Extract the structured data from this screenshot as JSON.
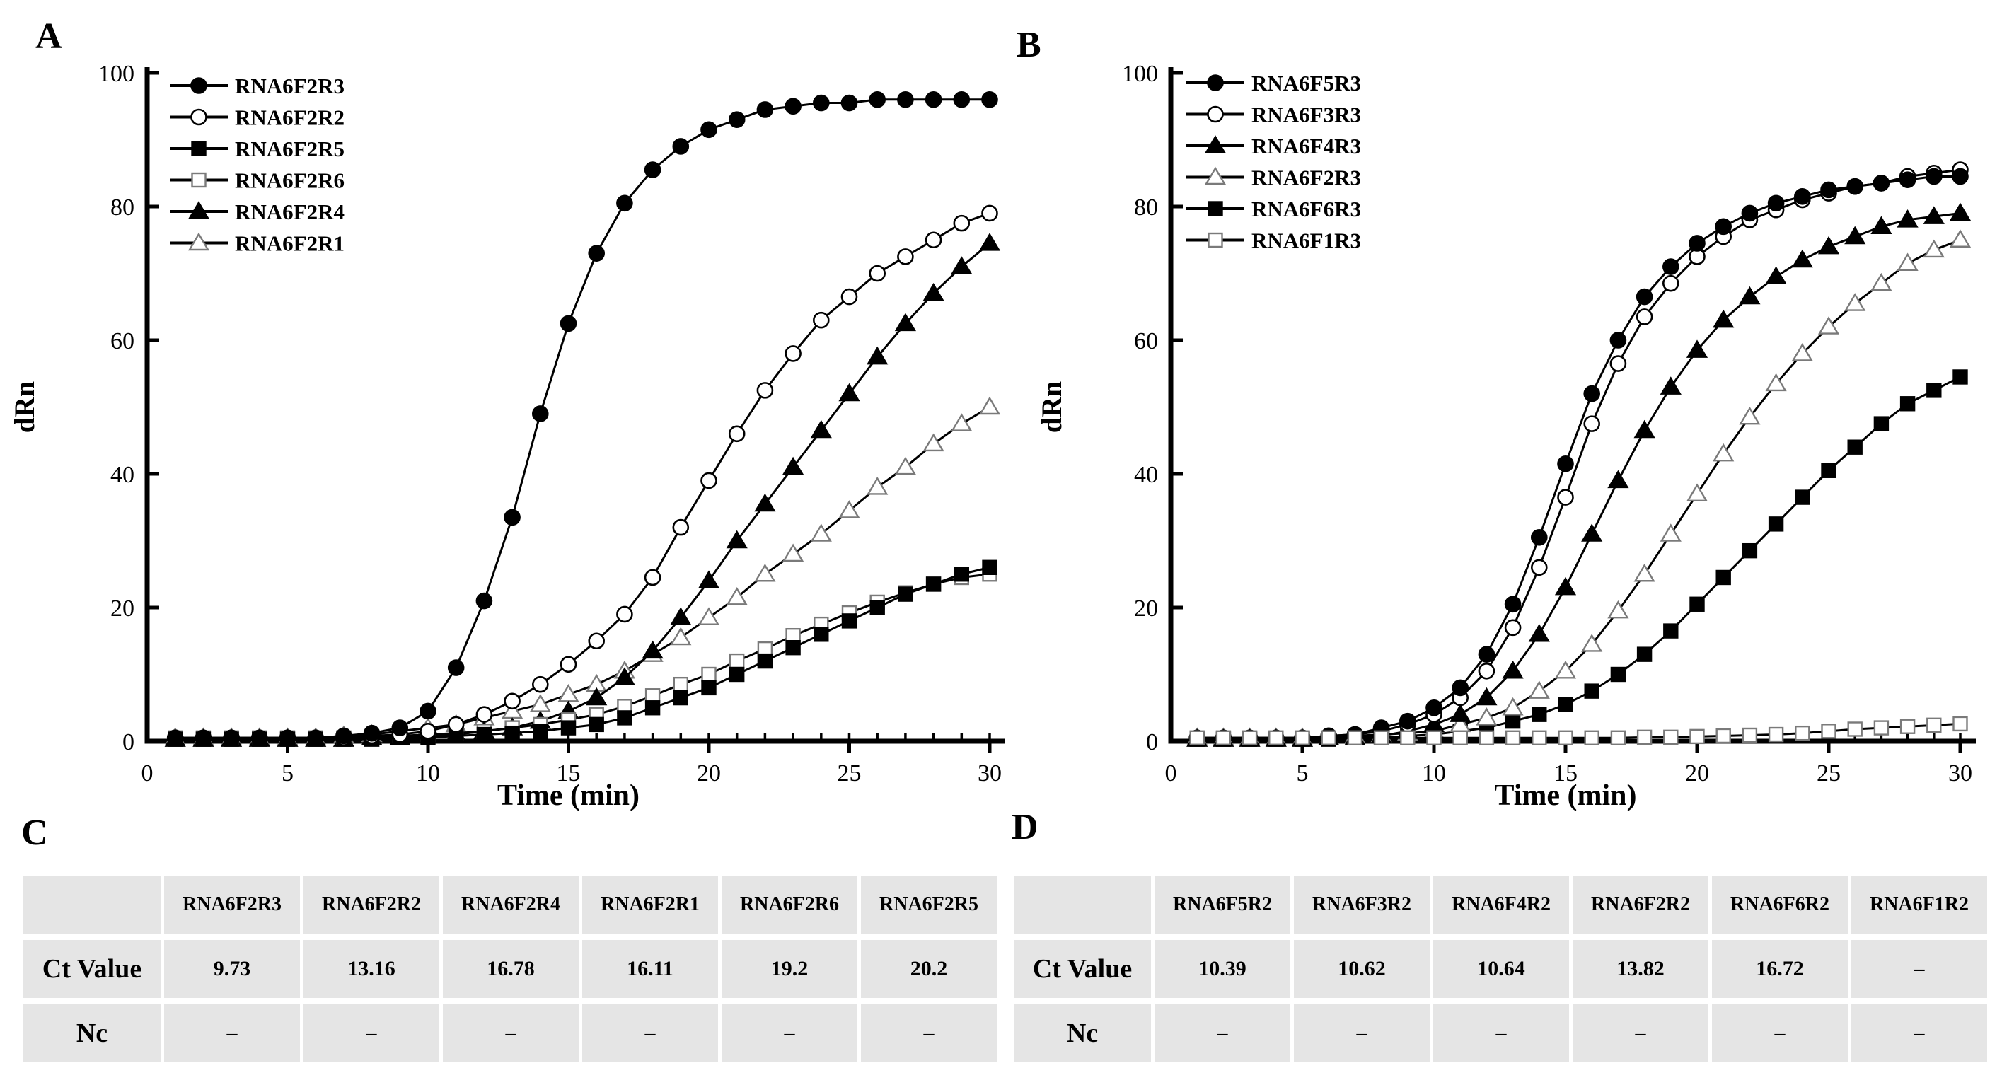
{
  "figure": {
    "background": "#ffffff",
    "ink": "#000000",
    "table_cell_bg": "#e5e5e5",
    "panel_letters": {
      "a": "A",
      "b": "B",
      "c": "C",
      "d": "D"
    }
  },
  "chart_data": [
    {
      "type": "line",
      "panel": "A",
      "title": "",
      "xlabel": "Time (min)",
      "ylabel": "dRn",
      "xlim": [
        0,
        30
      ],
      "ylim": [
        0,
        100
      ],
      "x_major_ticks": [
        0,
        5,
        10,
        15,
        20,
        25,
        30
      ],
      "x_minor_step": 1,
      "y_ticks": [
        0,
        20,
        40,
        60,
        80,
        100
      ],
      "grid": false,
      "legend_position": "top-left-inside",
      "x": [
        1,
        2,
        3,
        4,
        5,
        6,
        7,
        8,
        9,
        10,
        11,
        12,
        13,
        14,
        15,
        16,
        17,
        18,
        19,
        20,
        21,
        22,
        23,
        24,
        25,
        26,
        27,
        28,
        29,
        30
      ],
      "series": [
        {
          "name": "RNA6F2R3",
          "marker": "circle",
          "fill": "filled",
          "values": [
            0.5,
            0.5,
            0.5,
            0.5,
            0.5,
            0.5,
            0.8,
            1.2,
            2,
            4.5,
            11,
            21,
            33.5,
            49,
            62.5,
            73,
            80.5,
            85.5,
            89,
            91.5,
            93,
            94.5,
            95,
            95.5,
            95.5,
            96,
            96,
            96,
            96,
            96
          ]
        },
        {
          "name": "RNA6F2R2",
          "marker": "circle",
          "fill": "open",
          "values": [
            0.5,
            0.5,
            0.5,
            0.5,
            0.5,
            0.5,
            0.5,
            0.8,
            1,
            1.5,
            2.5,
            4,
            6,
            8.5,
            11.5,
            15,
            19,
            24.5,
            32,
            39,
            46,
            52.5,
            58,
            63,
            66.5,
            70,
            72.5,
            75,
            77.5,
            79
          ]
        },
        {
          "name": "RNA6F2R5",
          "marker": "square",
          "fill": "filled",
          "values": [
            0.3,
            0.3,
            0.3,
            0.3,
            0.3,
            0.3,
            0.3,
            0.3,
            0.5,
            0.5,
            0.8,
            1,
            1.2,
            1.5,
            2,
            2.5,
            3.5,
            5,
            6.5,
            8,
            10,
            12,
            14,
            16,
            18,
            20,
            22,
            23.5,
            25,
            26
          ]
        },
        {
          "name": "RNA6F2R6",
          "marker": "square",
          "fill": "open",
          "values": [
            0.5,
            0.5,
            0.5,
            0.5,
            0.5,
            0.5,
            0.5,
            0.5,
            0.8,
            1,
            1.2,
            1.5,
            2,
            2.5,
            3.2,
            4,
            5.2,
            6.8,
            8.5,
            10,
            12,
            13.8,
            15.8,
            17.5,
            19.2,
            20.8,
            22.2,
            23.5,
            24.5,
            25
          ]
        },
        {
          "name": "RNA6F2R4",
          "marker": "triangle",
          "fill": "filled",
          "values": [
            0.3,
            0.3,
            0.3,
            0.3,
            0.3,
            0.3,
            0.3,
            0.5,
            0.5,
            0.8,
            1,
            1.5,
            2,
            3,
            4.5,
            6.5,
            9.5,
            13.5,
            18.5,
            24,
            30,
            35.5,
            41,
            46.5,
            52,
            57.5,
            62.5,
            67,
            71,
            74.5
          ]
        },
        {
          "name": "RNA6F2R1",
          "marker": "triangle",
          "fill": "open",
          "values": [
            0.5,
            0.5,
            0.5,
            0.5,
            0.5,
            0.5,
            0.8,
            1,
            1.5,
            2,
            2.5,
            3.5,
            4.5,
            5.5,
            7,
            8.5,
            10.5,
            13,
            15.5,
            18.5,
            21.5,
            25,
            28,
            31,
            34.5,
            38,
            41,
            44.5,
            47.5,
            50
          ]
        }
      ]
    },
    {
      "type": "line",
      "panel": "B",
      "title": "",
      "xlabel": "Time (min)",
      "ylabel": "dRn",
      "xlim": [
        0,
        30
      ],
      "ylim": [
        0,
        100
      ],
      "x_major_ticks": [
        0,
        5,
        10,
        15,
        20,
        25,
        30
      ],
      "x_minor_step": 1,
      "y_ticks": [
        0,
        20,
        40,
        60,
        80,
        100
      ],
      "grid": false,
      "legend_position": "top-left-inside",
      "x": [
        1,
        2,
        3,
        4,
        5,
        6,
        7,
        8,
        9,
        10,
        11,
        12,
        13,
        14,
        15,
        16,
        17,
        18,
        19,
        20,
        21,
        22,
        23,
        24,
        25,
        26,
        27,
        28,
        29,
        30
      ],
      "series": [
        {
          "name": "RNA6F5R3",
          "marker": "circle",
          "fill": "filled",
          "values": [
            0.5,
            0.5,
            0.5,
            0.5,
            0.5,
            0.8,
            1,
            2,
            3,
            5,
            8,
            13,
            20.5,
            30.5,
            41.5,
            52,
            60,
            66.5,
            71,
            74.5,
            77,
            79,
            80.5,
            81.5,
            82.5,
            83,
            83.5,
            84,
            84.5,
            84.5
          ]
        },
        {
          "name": "RNA6F3R3",
          "marker": "circle",
          "fill": "open",
          "values": [
            0.5,
            0.5,
            0.5,
            0.5,
            0.5,
            0.8,
            1,
            1.5,
            2.5,
            4,
            6.5,
            10.5,
            17,
            26,
            36.5,
            47.5,
            56.5,
            63.5,
            68.5,
            72.5,
            75.5,
            78,
            79.5,
            81,
            82,
            83,
            83.5,
            84.5,
            85,
            85.5
          ]
        },
        {
          "name": "RNA6F4R3",
          "marker": "triangle",
          "fill": "filled",
          "values": [
            0.3,
            0.3,
            0.3,
            0.3,
            0.3,
            0.5,
            0.5,
            0.8,
            1.5,
            2.5,
            4,
            6.5,
            10.5,
            16,
            23,
            31,
            39,
            46.5,
            53,
            58.5,
            63,
            66.5,
            69.5,
            72,
            74,
            75.5,
            77,
            78,
            78.5,
            79
          ]
        },
        {
          "name": "RNA6F2R3",
          "marker": "triangle",
          "fill": "open",
          "values": [
            0.5,
            0.5,
            0.5,
            0.5,
            0.5,
            0.5,
            0.8,
            1,
            1.2,
            1.5,
            2.5,
            3.5,
            5,
            7.5,
            10.5,
            14.5,
            19.5,
            25,
            31,
            37,
            43,
            48.5,
            53.5,
            58,
            62,
            65.5,
            68.5,
            71.5,
            73.5,
            75
          ]
        },
        {
          "name": "RNA6F6R3",
          "marker": "square",
          "fill": "filled",
          "values": [
            0.3,
            0.3,
            0.3,
            0.3,
            0.3,
            0.3,
            0.5,
            0.5,
            0.8,
            1,
            1.5,
            2,
            3,
            4,
            5.5,
            7.5,
            10,
            13,
            16.5,
            20.5,
            24.5,
            28.5,
            32.5,
            36.5,
            40.5,
            44,
            47.5,
            50.5,
            52.5,
            54.5
          ]
        },
        {
          "name": "RNA6F1R3",
          "marker": "square",
          "fill": "open",
          "values": [
            0.5,
            0.5,
            0.5,
            0.5,
            0.5,
            0.5,
            0.5,
            0.5,
            0.5,
            0.5,
            0.5,
            0.5,
            0.5,
            0.5,
            0.5,
            0.5,
            0.5,
            0.6,
            0.6,
            0.7,
            0.8,
            0.9,
            1,
            1.2,
            1.5,
            1.8,
            2,
            2.2,
            2.4,
            2.6
          ]
        }
      ]
    },
    {
      "type": "table",
      "panel": "C",
      "columns": [
        "RNA6F2R3",
        "RNA6F2R2",
        "RNA6F2R4",
        "RNA6F2R1",
        "RNA6F2R6",
        "RNA6F2R5"
      ],
      "rows": [
        {
          "label": "Ct Value",
          "values": [
            "9.73",
            "13.16",
            "16.78",
            "16.11",
            "19.2",
            "20.2"
          ]
        },
        {
          "label": "Nc",
          "values": [
            "–",
            "–",
            "–",
            "–",
            "–",
            "–"
          ]
        }
      ]
    },
    {
      "type": "table",
      "panel": "D",
      "columns": [
        "RNA6F5R2",
        "RNA6F3R2",
        "RNA6F4R2",
        "RNA6F2R2",
        "RNA6F6R2",
        "RNA6F1R2"
      ],
      "rows": [
        {
          "label": "Ct Value",
          "values": [
            "10.39",
            "10.62",
            "10.64",
            "13.82",
            "16.72",
            "–"
          ]
        },
        {
          "label": "Nc",
          "values": [
            "–",
            "–",
            "–",
            "–",
            "–",
            "–"
          ]
        }
      ]
    }
  ]
}
